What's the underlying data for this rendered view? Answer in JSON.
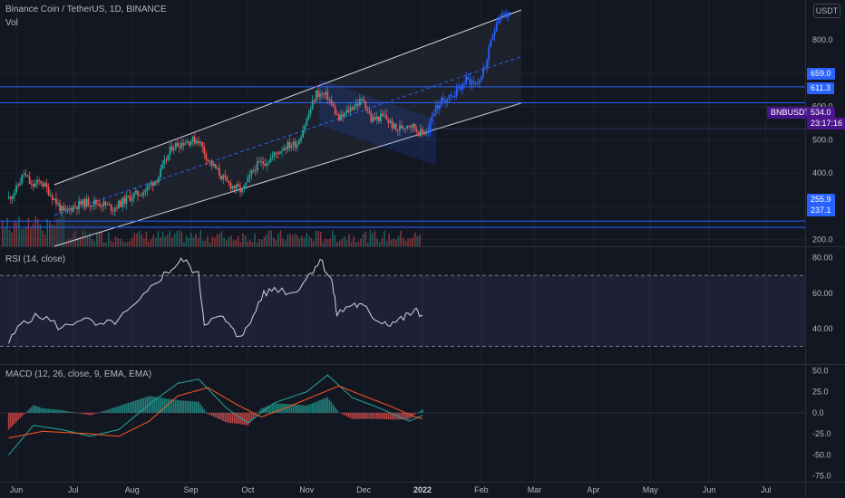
{
  "header": {
    "symbol_title": "Binance Coin / TetherUS, 1D, BINANCE",
    "vol_label": "Vol",
    "currency_badge": "USDT"
  },
  "colors": {
    "background": "#131722",
    "up": "#26a69a",
    "down": "#ef5350",
    "blue": "#2962ff",
    "channel": "#d1d4dc",
    "rsi_band": "#7e57c2",
    "macd_line": "#26a69a",
    "signal_line": "#ff5722"
  },
  "price_tags": [
    {
      "label": "659.0",
      "kind": "level"
    },
    {
      "label": "611.3",
      "kind": "level"
    },
    {
      "label": "255.9",
      "kind": "level"
    },
    {
      "label": "237.1",
      "kind": "level"
    }
  ],
  "last_price": {
    "symbol": "BNBUSDT",
    "price": "534.0",
    "countdown": "23:17:16"
  },
  "chart_data": [
    {
      "type": "candlestick",
      "title": "Binance Coin / TetherUS, 1D, BINANCE",
      "x_ticks": [
        "Jun",
        "Jul",
        "Aug",
        "Sep",
        "Oct",
        "Nov",
        "Dec",
        "2022",
        "Feb",
        "Mar",
        "Apr",
        "May",
        "Jun",
        "Jul"
      ],
      "y_ticks": [
        "800.0",
        "700.0",
        "600.0",
        "500.0",
        "400.0",
        "300.0",
        "200.0"
      ],
      "ylim": [
        180,
        920
      ],
      "horizontal_levels": [
        659.0,
        611.3,
        255.9,
        237.1
      ],
      "series_close": [
        {
          "x": "2021-05-28",
          "close": 325
        },
        {
          "x": "2021-06-01",
          "close": 352
        },
        {
          "x": "2021-06-05",
          "close": 400
        },
        {
          "x": "2021-06-09",
          "close": 360
        },
        {
          "x": "2021-06-14",
          "close": 375
        },
        {
          "x": "2021-06-20",
          "close": 330
        },
        {
          "x": "2021-06-26",
          "close": 280
        },
        {
          "x": "2021-07-01",
          "close": 300
        },
        {
          "x": "2021-07-08",
          "close": 312
        },
        {
          "x": "2021-07-15",
          "close": 310
        },
        {
          "x": "2021-07-22",
          "close": 295
        },
        {
          "x": "2021-07-30",
          "close": 325
        },
        {
          "x": "2021-08-07",
          "close": 345
        },
        {
          "x": "2021-08-15",
          "close": 390
        },
        {
          "x": "2021-08-22",
          "close": 480
        },
        {
          "x": "2021-08-29",
          "close": 495
        },
        {
          "x": "2021-09-05",
          "close": 500
        },
        {
          "x": "2021-09-10",
          "close": 440
        },
        {
          "x": "2021-09-20",
          "close": 370
        },
        {
          "x": "2021-09-28",
          "close": 345
        },
        {
          "x": "2021-10-05",
          "close": 420
        },
        {
          "x": "2021-10-12",
          "close": 440
        },
        {
          "x": "2021-10-20",
          "close": 480
        },
        {
          "x": "2021-10-27",
          "close": 490
        },
        {
          "x": "2021-11-01",
          "close": 560
        },
        {
          "x": "2021-11-06",
          "close": 640
        },
        {
          "x": "2021-11-12",
          "close": 630
        },
        {
          "x": "2021-11-18",
          "close": 560
        },
        {
          "x": "2021-11-25",
          "close": 600
        },
        {
          "x": "2021-12-01",
          "close": 620
        },
        {
          "x": "2021-12-05",
          "close": 560
        },
        {
          "x": "2021-12-12",
          "close": 570
        },
        {
          "x": "2021-12-18",
          "close": 530
        },
        {
          "x": "2021-12-25",
          "close": 550
        },
        {
          "x": "2021-12-31",
          "close": 520
        },
        {
          "x": "2022-01-04",
          "close": 530
        }
      ],
      "projection_close": [
        {
          "x": "2022-01-04",
          "close": 530
        },
        {
          "x": "2022-01-07",
          "close": 590
        },
        {
          "x": "2022-01-12",
          "close": 620
        },
        {
          "x": "2022-01-18",
          "close": 640
        },
        {
          "x": "2022-01-24",
          "close": 680
        },
        {
          "x": "2022-01-30",
          "close": 670
        },
        {
          "x": "2022-02-03",
          "close": 720
        },
        {
          "x": "2022-02-06",
          "close": 790
        },
        {
          "x": "2022-02-09",
          "close": 860
        },
        {
          "x": "2022-02-12",
          "close": 880
        },
        {
          "x": "2022-02-16",
          "close": 870
        }
      ]
    },
    {
      "type": "line",
      "title": "RSI (14, close)",
      "y_ticks": [
        "80.00",
        "60.00",
        "40.00"
      ],
      "ylim": [
        20,
        86
      ],
      "band": [
        30,
        70
      ],
      "series": [
        {
          "x": "2021-05-28",
          "y": 32
        },
        {
          "x": "2021-06-05",
          "y": 45
        },
        {
          "x": "2021-06-15",
          "y": 47
        },
        {
          "x": "2021-06-25",
          "y": 40
        },
        {
          "x": "2021-07-05",
          "y": 46
        },
        {
          "x": "2021-07-15",
          "y": 41
        },
        {
          "x": "2021-07-25",
          "y": 45
        },
        {
          "x": "2021-08-05",
          "y": 55
        },
        {
          "x": "2021-08-15",
          "y": 68
        },
        {
          "x": "2021-08-22",
          "y": 74
        },
        {
          "x": "2021-08-28",
          "y": 79
        },
        {
          "x": "2021-09-05",
          "y": 70
        },
        {
          "x": "2021-09-08",
          "y": 44
        },
        {
          "x": "2021-09-18",
          "y": 46
        },
        {
          "x": "2021-09-25",
          "y": 36
        },
        {
          "x": "2021-10-01",
          "y": 40
        },
        {
          "x": "2021-10-08",
          "y": 58
        },
        {
          "x": "2021-10-15",
          "y": 63
        },
        {
          "x": "2021-10-25",
          "y": 60
        },
        {
          "x": "2021-11-02",
          "y": 70
        },
        {
          "x": "2021-11-08",
          "y": 79
        },
        {
          "x": "2021-11-14",
          "y": 68
        },
        {
          "x": "2021-11-17",
          "y": 48
        },
        {
          "x": "2021-11-25",
          "y": 54
        },
        {
          "x": "2021-12-01",
          "y": 52
        },
        {
          "x": "2021-12-08",
          "y": 45
        },
        {
          "x": "2021-12-15",
          "y": 43
        },
        {
          "x": "2021-12-22",
          "y": 46
        },
        {
          "x": "2021-12-28",
          "y": 50
        },
        {
          "x": "2022-01-01",
          "y": 47
        }
      ]
    },
    {
      "type": "bar+line",
      "title": "MACD (12, 26, close, 9, EMA, EMA)",
      "y_ticks": [
        "50.0",
        "25.0",
        "0.0",
        "-25.0",
        "-50.0",
        "-75.0"
      ],
      "ylim": [
        -82,
        57
      ],
      "macd": [
        {
          "x": "2021-05-28",
          "y": -50
        },
        {
          "x": "2021-06-10",
          "y": -15
        },
        {
          "x": "2021-06-25",
          "y": -20
        },
        {
          "x": "2021-07-10",
          "y": -28
        },
        {
          "x": "2021-07-25",
          "y": -20
        },
        {
          "x": "2021-08-10",
          "y": 10
        },
        {
          "x": "2021-08-25",
          "y": 35
        },
        {
          "x": "2021-09-05",
          "y": 40
        },
        {
          "x": "2021-09-20",
          "y": 5
        },
        {
          "x": "2021-10-01",
          "y": -12
        },
        {
          "x": "2021-10-15",
          "y": 12
        },
        {
          "x": "2021-11-01",
          "y": 25
        },
        {
          "x": "2021-11-12",
          "y": 45
        },
        {
          "x": "2021-11-25",
          "y": 18
        },
        {
          "x": "2021-12-10",
          "y": 5
        },
        {
          "x": "2021-12-25",
          "y": -10
        },
        {
          "x": "2022-01-01",
          "y": -3
        }
      ],
      "signal": [
        {
          "x": "2021-05-28",
          "y": -30
        },
        {
          "x": "2021-06-15",
          "y": -22
        },
        {
          "x": "2021-07-10",
          "y": -25
        },
        {
          "x": "2021-07-25",
          "y": -28
        },
        {
          "x": "2021-08-10",
          "y": -10
        },
        {
          "x": "2021-08-25",
          "y": 20
        },
        {
          "x": "2021-09-10",
          "y": 30
        },
        {
          "x": "2021-09-25",
          "y": 10
        },
        {
          "x": "2021-10-08",
          "y": -5
        },
        {
          "x": "2021-10-20",
          "y": 5
        },
        {
          "x": "2021-11-05",
          "y": 20
        },
        {
          "x": "2021-11-18",
          "y": 32
        },
        {
          "x": "2021-12-01",
          "y": 20
        },
        {
          "x": "2021-12-15",
          "y": 8
        },
        {
          "x": "2021-12-28",
          "y": -5
        },
        {
          "x": "2022-01-01",
          "y": -7
        }
      ]
    }
  ]
}
